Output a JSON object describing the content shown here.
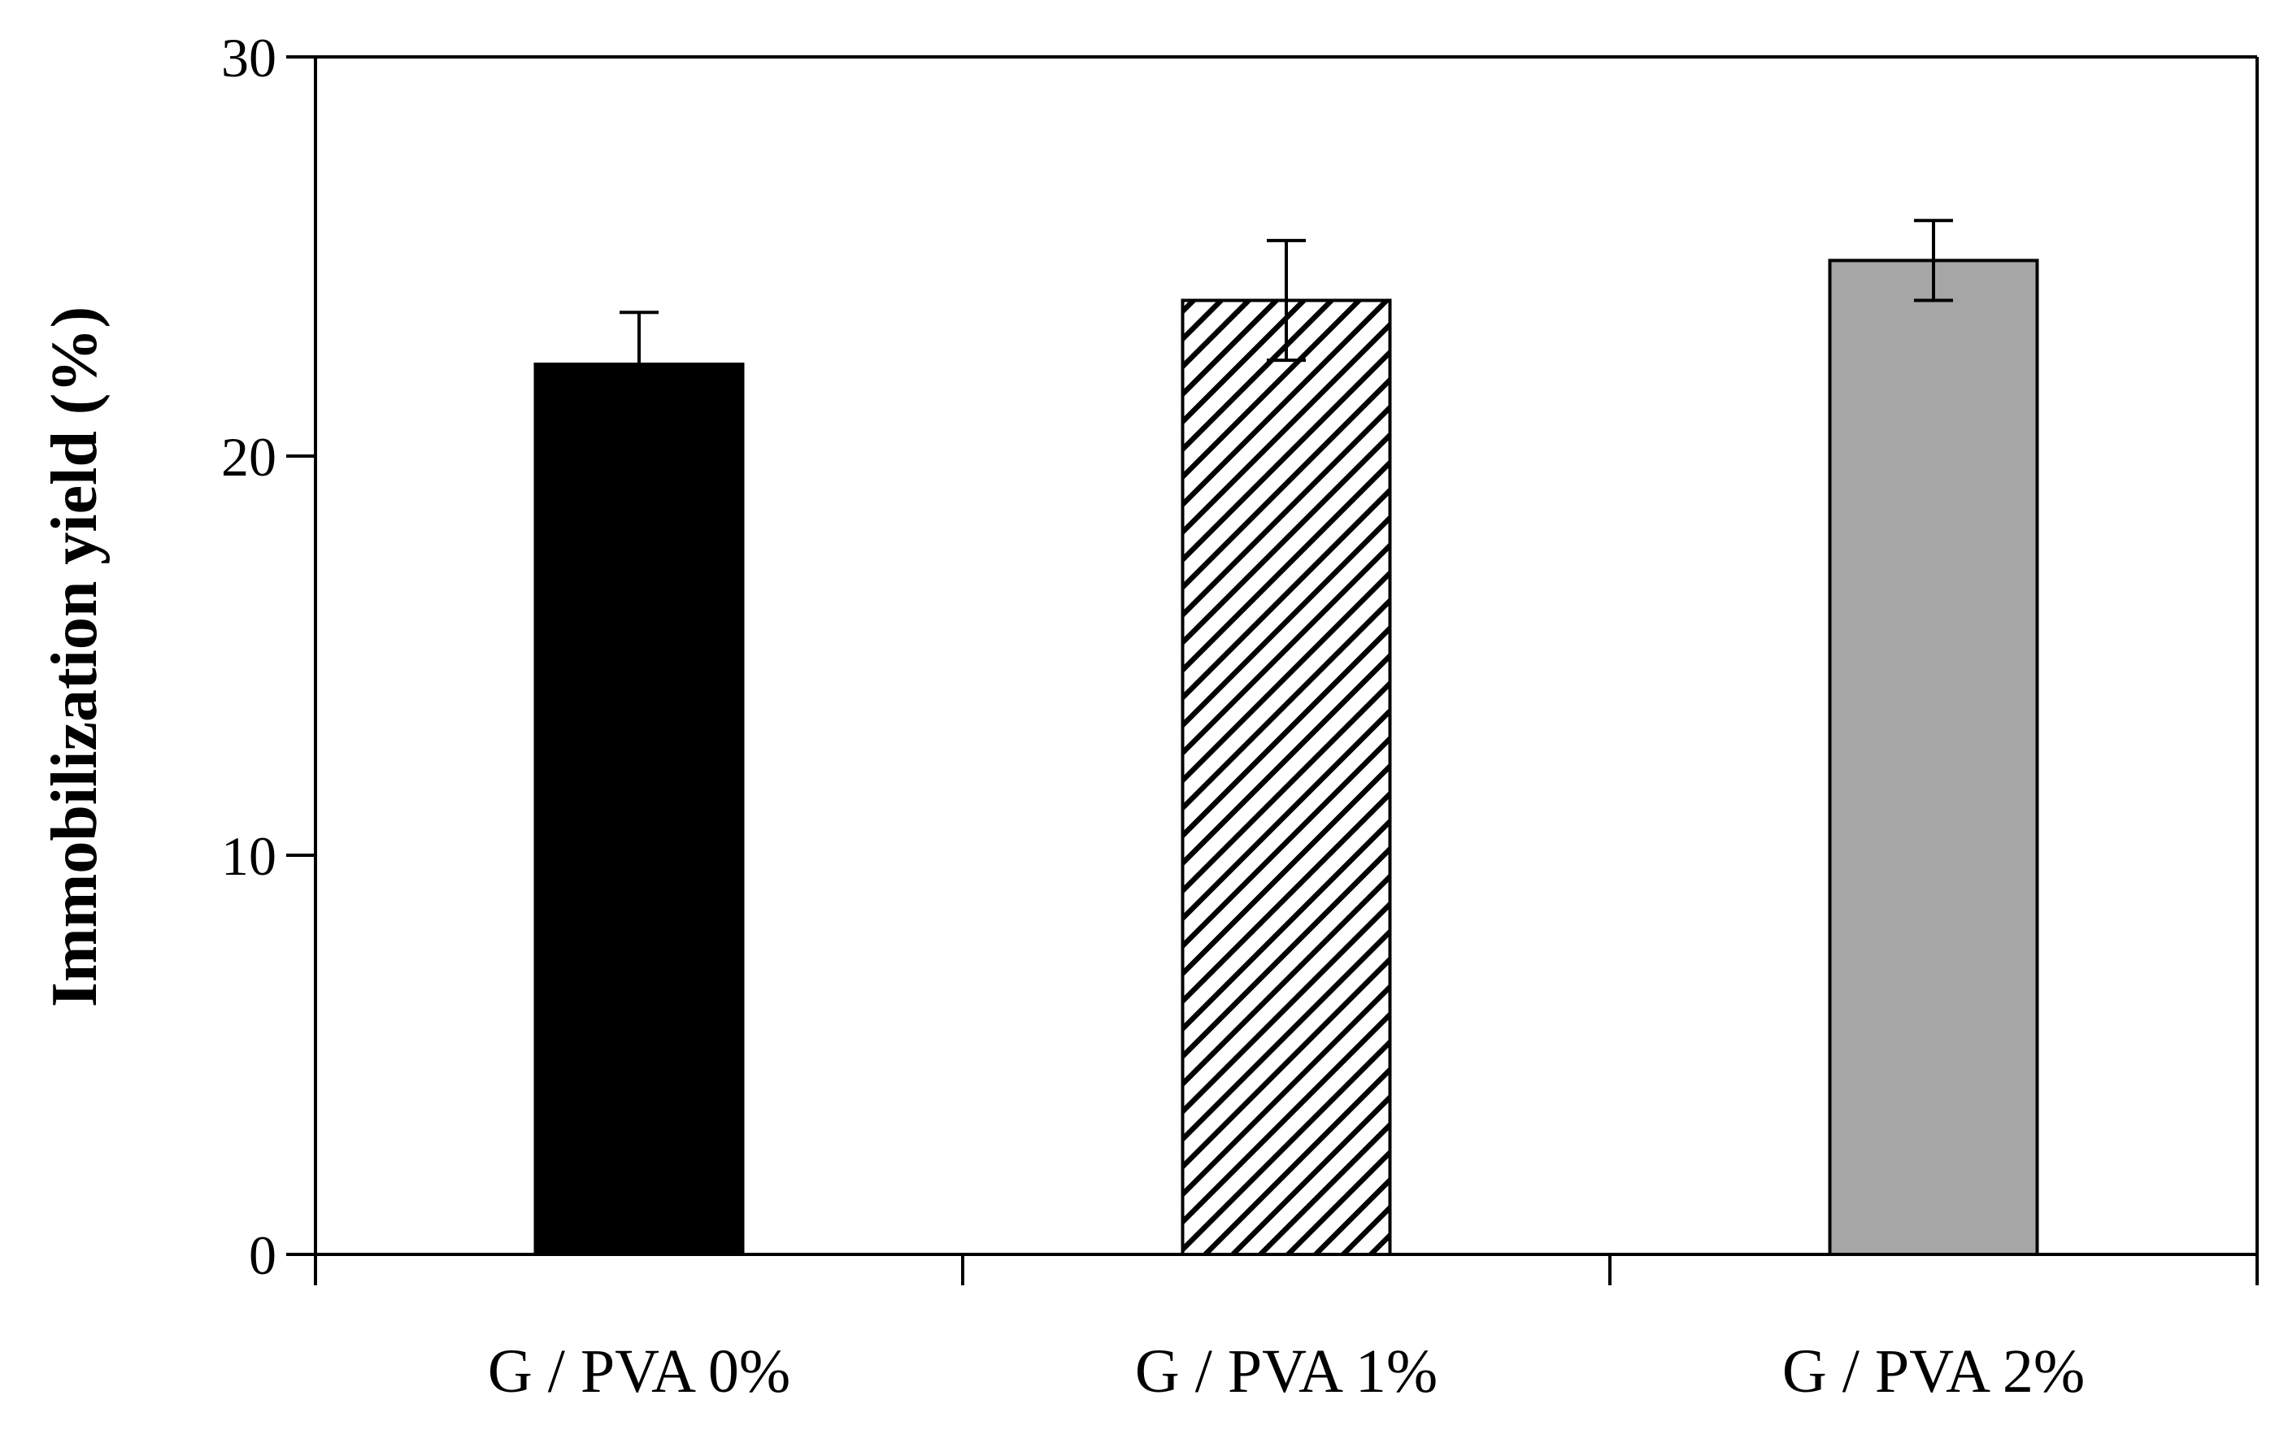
{
  "chart_data": {
    "type": "bar",
    "title": "",
    "xlabel": "",
    "ylabel": "Immobilization yield  (%)",
    "ylim": [
      0,
      30
    ],
    "yticks": [
      0,
      10,
      20,
      30
    ],
    "grid": false,
    "categories": [
      "G / PVA 0%",
      "G / PVA 1%",
      "G / PVA 2%"
    ],
    "values": [
      22.3,
      23.9,
      24.9
    ],
    "errors": [
      1.3,
      1.5,
      1.0
    ],
    "bar_styles": [
      {
        "fill": "#000000",
        "pattern": "solid"
      },
      {
        "fill": "#ffffff",
        "pattern": "diagonal-hatch"
      },
      {
        "fill": "#a6a6a6",
        "pattern": "solid"
      }
    ],
    "colors": {
      "axis": "#000000",
      "bar_outline": "#000000",
      "hatch": "#000000"
    }
  }
}
